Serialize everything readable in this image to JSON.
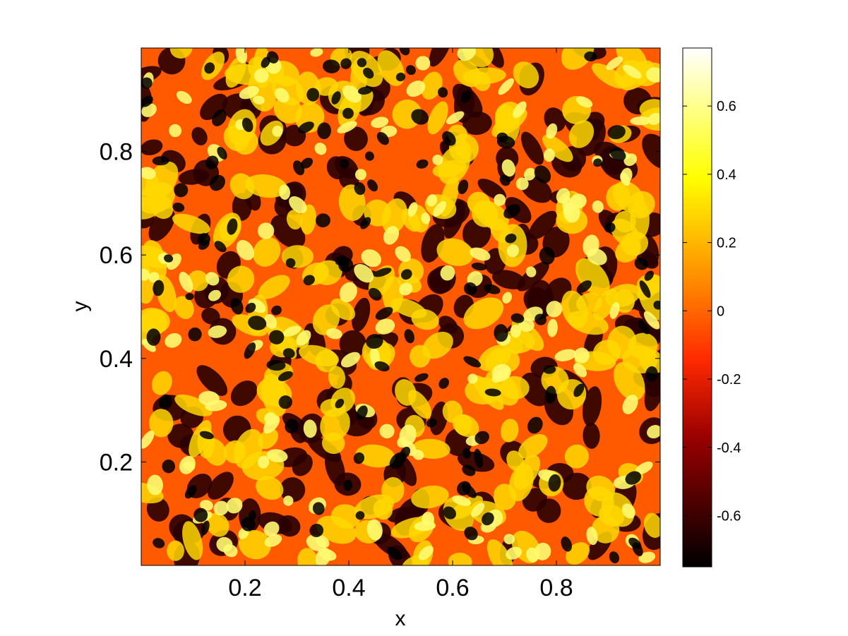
{
  "chart_data": {
    "type": "heatmap",
    "title": "",
    "xlabel": "x",
    "ylabel": "y",
    "xlim": [
      0,
      1
    ],
    "ylim": [
      0,
      1
    ],
    "xticks": [
      0.2,
      0.4,
      0.6,
      0.8
    ],
    "xtick_labels": [
      "0.2",
      "0.4",
      "0.6",
      "0.8"
    ],
    "yticks": [
      0.2,
      0.4,
      0.6,
      0.8
    ],
    "ytick_labels": [
      "0.2",
      "0.4",
      "0.6",
      "0.8"
    ],
    "colormap": "hot",
    "colormap_stops": [
      "#000000",
      "#c00000",
      "#ff4000",
      "#ff9f00",
      "#ffff00",
      "#ffffff"
    ],
    "colorbar": {
      "range": [
        -0.75,
        0.77
      ],
      "ticks": [
        -0.6,
        -0.4,
        -0.2,
        0,
        0.2,
        0.4,
        0.6
      ],
      "tick_labels": [
        "-0.6",
        "-0.4",
        "-0.2",
        "0",
        "0.2",
        "0.4",
        "0.6"
      ]
    },
    "grid": false,
    "field_description": "spatially random labyrinthine spot/stripe pattern, values between about -0.75 and 0.77"
  }
}
